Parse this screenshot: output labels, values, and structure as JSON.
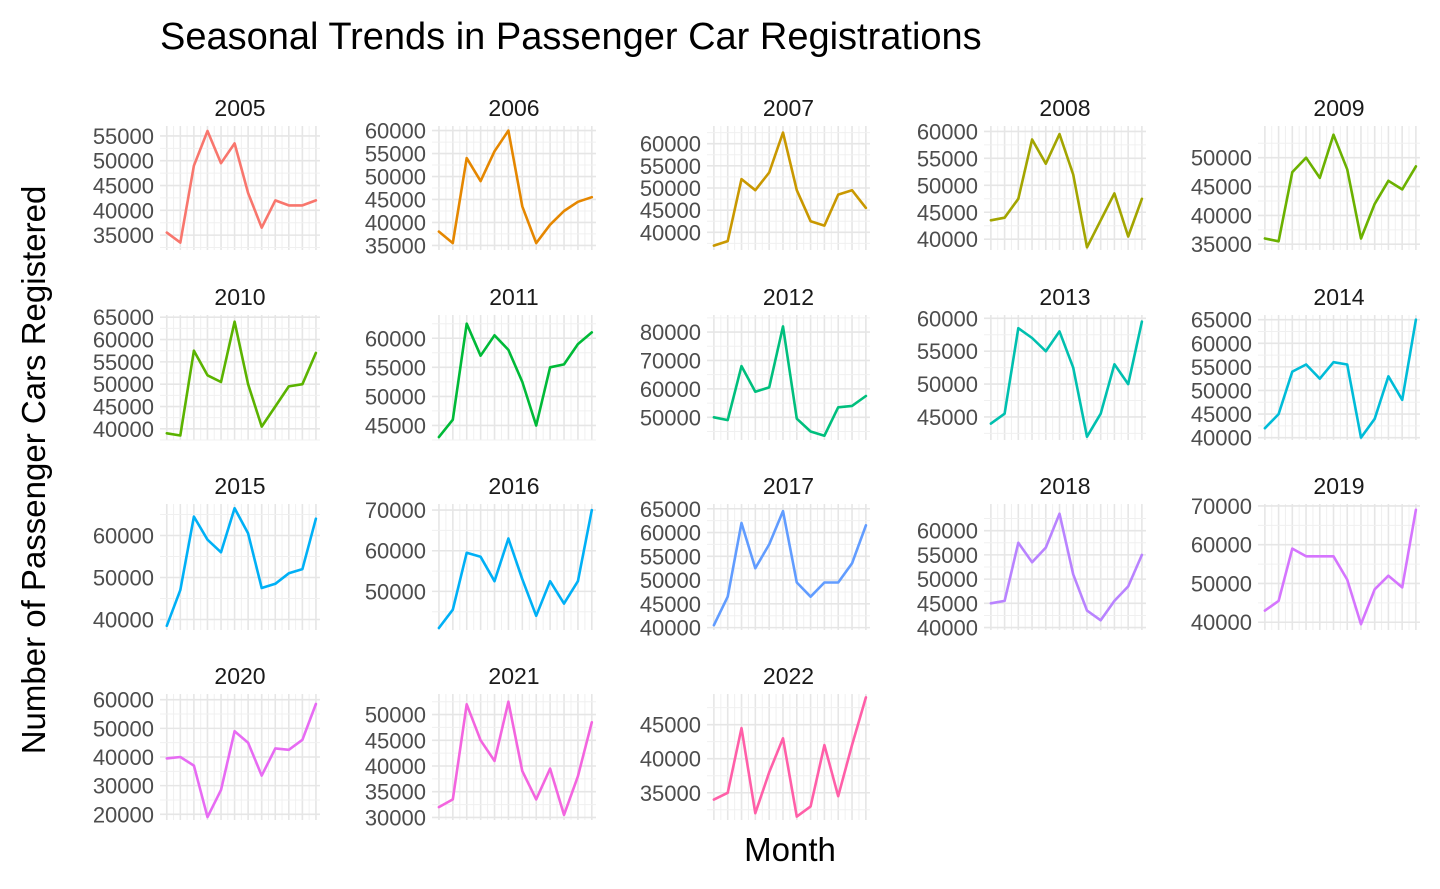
{
  "chart_data": {
    "type": "line",
    "title": "Seasonal Trends in Passenger Car Registrations",
    "xlabel": "Month",
    "ylabel": "Number of Passenger Cars Registered",
    "x": [
      1,
      2,
      3,
      4,
      5,
      6,
      7,
      8,
      9,
      10,
      11,
      12
    ],
    "grid": true,
    "facets": [
      {
        "name": "2005",
        "color": "#F8766D",
        "ylim": [
          32000,
          57000
        ],
        "yticks": [
          35000,
          40000,
          45000,
          50000,
          55000
        ],
        "values": [
          35500,
          33500,
          49000,
          56000,
          49500,
          53500,
          43500,
          36500,
          42000,
          41000,
          41000,
          42000
        ]
      },
      {
        "name": "2006",
        "color": "#E58700",
        "ylim": [
          34000,
          61000
        ],
        "yticks": [
          35000,
          40000,
          45000,
          50000,
          55000,
          60000
        ],
        "values": [
          38000,
          35500,
          54000,
          49000,
          55500,
          60000,
          43500,
          35500,
          39500,
          42500,
          44500,
          45500
        ]
      },
      {
        "name": "2007",
        "color": "#C99800",
        "ylim": [
          36000,
          64000
        ],
        "yticks": [
          40000,
          45000,
          50000,
          55000,
          60000
        ],
        "values": [
          37000,
          38000,
          52000,
          49500,
          53500,
          62500,
          49500,
          42500,
          41500,
          48500,
          49500,
          45500
        ]
      },
      {
        "name": "2008",
        "color": "#A3A500",
        "ylim": [
          38000,
          61000
        ],
        "yticks": [
          40000,
          45000,
          50000,
          55000,
          60000
        ],
        "values": [
          43500,
          44000,
          47500,
          58500,
          54000,
          59500,
          52000,
          38500,
          43500,
          48500,
          40500,
          47500
        ]
      },
      {
        "name": "2009",
        "color": "#6BB100",
        "ylim": [
          34000,
          55500
        ],
        "yticks": [
          35000,
          40000,
          45000,
          50000
        ],
        "values": [
          36000,
          35500,
          47500,
          50000,
          46500,
          54000,
          48000,
          36000,
          42000,
          46000,
          44500,
          48500
        ]
      },
      {
        "name": "2010",
        "color": "#00BA38",
        "ylim": [
          37500,
          65500
        ],
        "yticks": [
          40000,
          45000,
          50000,
          55000,
          60000,
          65000
        ],
        "values": [
          39000,
          38500,
          57500,
          52000,
          50500,
          64000,
          50000,
          40500,
          45000,
          49500,
          50000,
          57000
        ],
        "color_override": "#5BB300"
      },
      {
        "name": "2011",
        "color": "#00BF7D",
        "ylim": [
          42500,
          64000
        ],
        "yticks": [
          45000,
          50000,
          55000,
          60000
        ],
        "values": [
          43000,
          46000,
          62500,
          57000,
          60500,
          58000,
          52500,
          45000,
          55000,
          55500,
          59000,
          61000
        ],
        "color_override": "#00BA38"
      },
      {
        "name": "2012",
        "color": "#00C0AF",
        "ylim": [
          42000,
          86000
        ],
        "yticks": [
          50000,
          60000,
          70000,
          80000
        ],
        "values": [
          50000,
          49000,
          68000,
          59000,
          60500,
          82000,
          49500,
          45000,
          43500,
          53500,
          54000,
          57500
        ],
        "color_override": "#00BF7D"
      },
      {
        "name": "2013",
        "color": "#00BCD8",
        "ylim": [
          41500,
          60500
        ],
        "yticks": [
          45000,
          50000,
          55000,
          60000
        ],
        "values": [
          44000,
          45500,
          58500,
          57000,
          55000,
          58000,
          52500,
          42000,
          45500,
          53000,
          50000,
          59500
        ],
        "color_override": "#00C0AF"
      },
      {
        "name": "2014",
        "color": "#00B0F6",
        "ylim": [
          39500,
          66000
        ],
        "yticks": [
          40000,
          45000,
          50000,
          55000,
          60000,
          65000
        ],
        "values": [
          42000,
          45000,
          54000,
          55500,
          52500,
          56000,
          55500,
          40000,
          44000,
          53000,
          48000,
          65000
        ],
        "color_override": "#00BCD8"
      },
      {
        "name": "2015",
        "color": "#00B0F6",
        "ylim": [
          37500,
          67500
        ],
        "yticks": [
          40000,
          50000,
          60000
        ],
        "values": [
          38500,
          47000,
          64500,
          59000,
          56000,
          66500,
          60500,
          47500,
          48500,
          51000,
          52000,
          64000
        ]
      },
      {
        "name": "2016",
        "color": "#00B0F6",
        "ylim": [
          40500,
          71500
        ],
        "yticks": [
          50000,
          60000,
          70000
        ],
        "values": [
          41000,
          45500,
          59500,
          58500,
          52500,
          63000,
          53000,
          44000,
          52500,
          47000,
          52500,
          70000
        ]
      },
      {
        "name": "2017",
        "color": "#619CFF",
        "ylim": [
          39500,
          66000
        ],
        "yticks": [
          40000,
          45000,
          50000,
          55000,
          60000,
          65000
        ],
        "values": [
          40500,
          46500,
          62000,
          52500,
          57500,
          64500,
          49500,
          46500,
          49500,
          49500,
          53500,
          61500
        ]
      },
      {
        "name": "2018",
        "color": "#B983FF",
        "ylim": [
          39500,
          65500
        ],
        "yticks": [
          40000,
          45000,
          50000,
          55000,
          60000
        ],
        "values": [
          45000,
          45500,
          57500,
          53500,
          56500,
          63500,
          51000,
          43500,
          41500,
          45500,
          48500,
          55000
        ]
      },
      {
        "name": "2019",
        "color": "#E76BF3",
        "ylim": [
          38000,
          70500
        ],
        "yticks": [
          40000,
          50000,
          60000,
          70000
        ],
        "values": [
          43000,
          45500,
          59000,
          57000,
          57000,
          57000,
          51000,
          39500,
          48500,
          52000,
          49000,
          69000
        ],
        "color_override": "#D575FE"
      },
      {
        "name": "2020",
        "color": "#E76BF3",
        "ylim": [
          18000,
          62000
        ],
        "yticks": [
          20000,
          30000,
          40000,
          50000,
          60000
        ],
        "values": [
          39500,
          40000,
          37000,
          19000,
          28500,
          49000,
          45000,
          33500,
          43000,
          42500,
          46000,
          58500
        ]
      },
      {
        "name": "2021",
        "color": "#FF61C3",
        "ylim": [
          29500,
          54000
        ],
        "yticks": [
          30000,
          35000,
          40000,
          45000,
          50000
        ],
        "values": [
          32000,
          33500,
          52000,
          45000,
          41000,
          52500,
          39000,
          33500,
          39500,
          30500,
          38000,
          48500
        ],
        "color_override": "#F365DF"
      },
      {
        "name": "2022",
        "color": "#FF61C3",
        "ylim": [
          31000,
          49500
        ],
        "yticks": [
          35000,
          40000,
          45000
        ],
        "values": [
          34000,
          35000,
          44500,
          32000,
          38000,
          43000,
          31500,
          33000,
          42000,
          34500,
          42000,
          49000
        ],
        "color_override": "#FF5FA8"
      }
    ]
  }
}
